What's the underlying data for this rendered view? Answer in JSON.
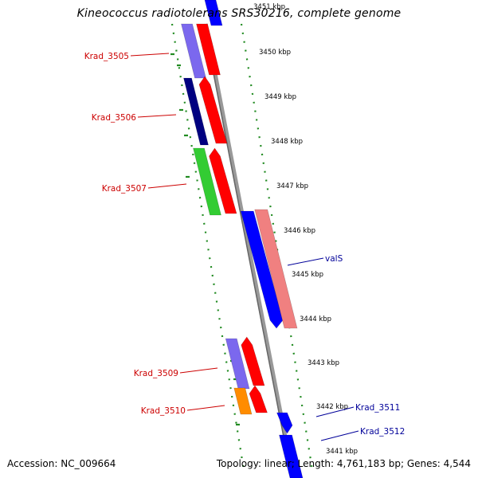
{
  "title": "Kineococcus radiotolerans SRS30216, complete genome",
  "footer": {
    "accession": "Accession: NC_009664",
    "topology": "Topology: linear; Length: 4,761,183 bp; Genes: 4,544"
  },
  "ticks": [
    "3451 kbp",
    "3450 kbp",
    "3449 kbp",
    "3448 kbp",
    "3447 kbp",
    "3446 kbp",
    "3445 kbp",
    "3444 kbp",
    "3443 kbp",
    "3442 kbp",
    "3441 kbp"
  ],
  "gene_labels_left": [
    "Krad_3505",
    "Krad_3506",
    "Krad_3507",
    "Krad_3509",
    "Krad_3510"
  ],
  "gene_labels_right": [
    "valS",
    "Krad_3511",
    "Krad_3512"
  ],
  "colors": {
    "label_left": "#cc0000",
    "label_right": "#000099",
    "dotted": "#228b22",
    "backbone": "#888888",
    "red": "#ff0000",
    "blue": "#0000ff",
    "slate": "#7b68ee",
    "navy": "#000080",
    "green": "#33cc33",
    "orange": "#ff8c00",
    "pink": "#f08080"
  }
}
